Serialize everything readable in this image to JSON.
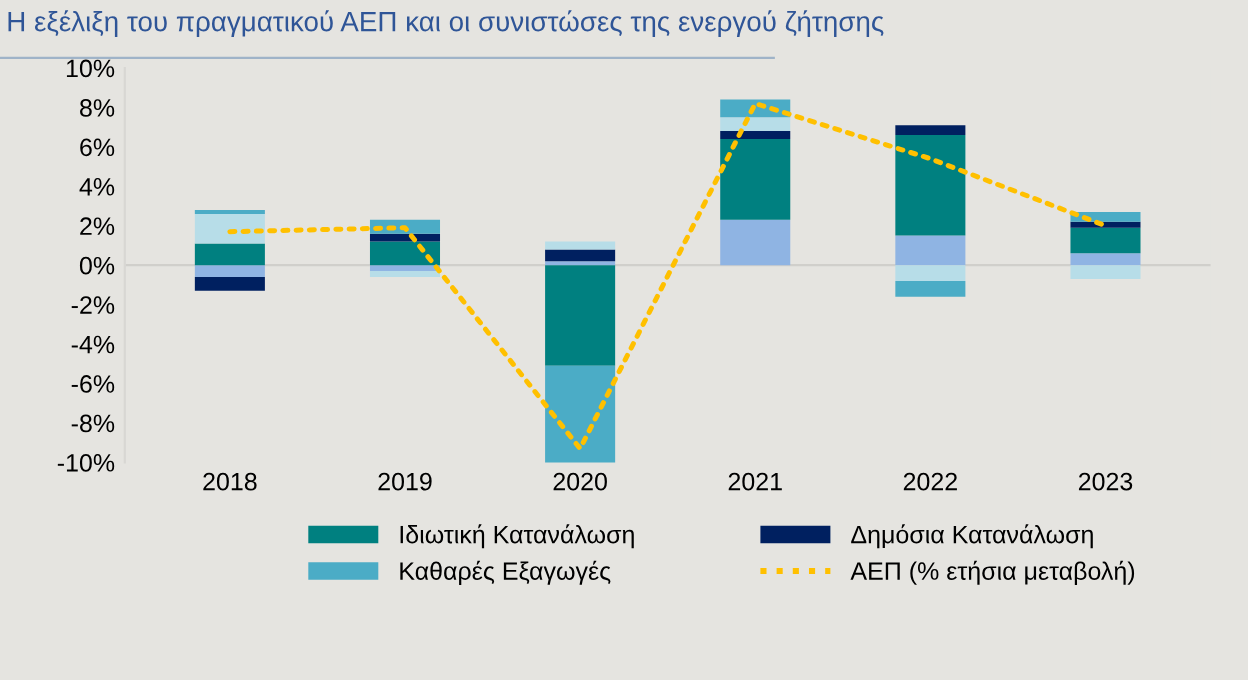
{
  "chart_data": {
    "type": "bar",
    "stacked": true,
    "title": "Η εξέλιξη του πραγματικού ΑΕΠ και οι συνιστώσες της ενεργού ζήτησης",
    "categories": [
      "2018",
      "2019",
      "2020",
      "2021",
      "2022",
      "2023"
    ],
    "series": [
      {
        "color": "#8fb4e3",
        "values": [
          -0.6,
          -0.3,
          0.2,
          2.3,
          1.5,
          0.6
        ]
      },
      {
        "name": "Ιδιωτική Κατανάλωση",
        "color": "#008080",
        "values": [
          1.1,
          1.2,
          -5.1,
          4.1,
          5.1,
          1.3
        ]
      },
      {
        "name": "Δημόσια Κατανάλωση",
        "color": "#002060",
        "values": [
          -0.7,
          0.4,
          0.6,
          0.4,
          0.5,
          0.3
        ]
      },
      {
        "color": "#b7dde8",
        "values": [
          1.5,
          -0.3,
          0.4,
          0.7,
          -0.8,
          -0.7
        ]
      },
      {
        "name": "Καθαρές Εξαγωγές",
        "color": "#4bacc6",
        "values": [
          0.2,
          0.7,
          -5.0,
          0.9,
          -0.8,
          0.5
        ]
      },
      {
        "name": "ΑΕΠ (% ετήσια μεταβολή)",
        "type": "line",
        "color": "#ffc000",
        "line_style": "dotted",
        "values": [
          1.7,
          1.9,
          -9.3,
          8.2,
          5.4,
          2.0
        ]
      }
    ],
    "ylim": [
      -10,
      10
    ],
    "yticks": [
      {
        "value": -10,
        "label": "-10%"
      },
      {
        "value": -8,
        "label": "-8%"
      },
      {
        "value": -6,
        "label": "-6%"
      },
      {
        "value": -4,
        "label": "-4%"
      },
      {
        "value": -2,
        "label": "-2%"
      },
      {
        "value": 0,
        "label": "0%"
      },
      {
        "value": 2,
        "label": "2%"
      },
      {
        "value": 4,
        "label": "4%"
      },
      {
        "value": 6,
        "label": "6%"
      },
      {
        "value": 8,
        "label": "8%"
      },
      {
        "value": 10,
        "label": "10%"
      }
    ],
    "legend": "bottom"
  }
}
